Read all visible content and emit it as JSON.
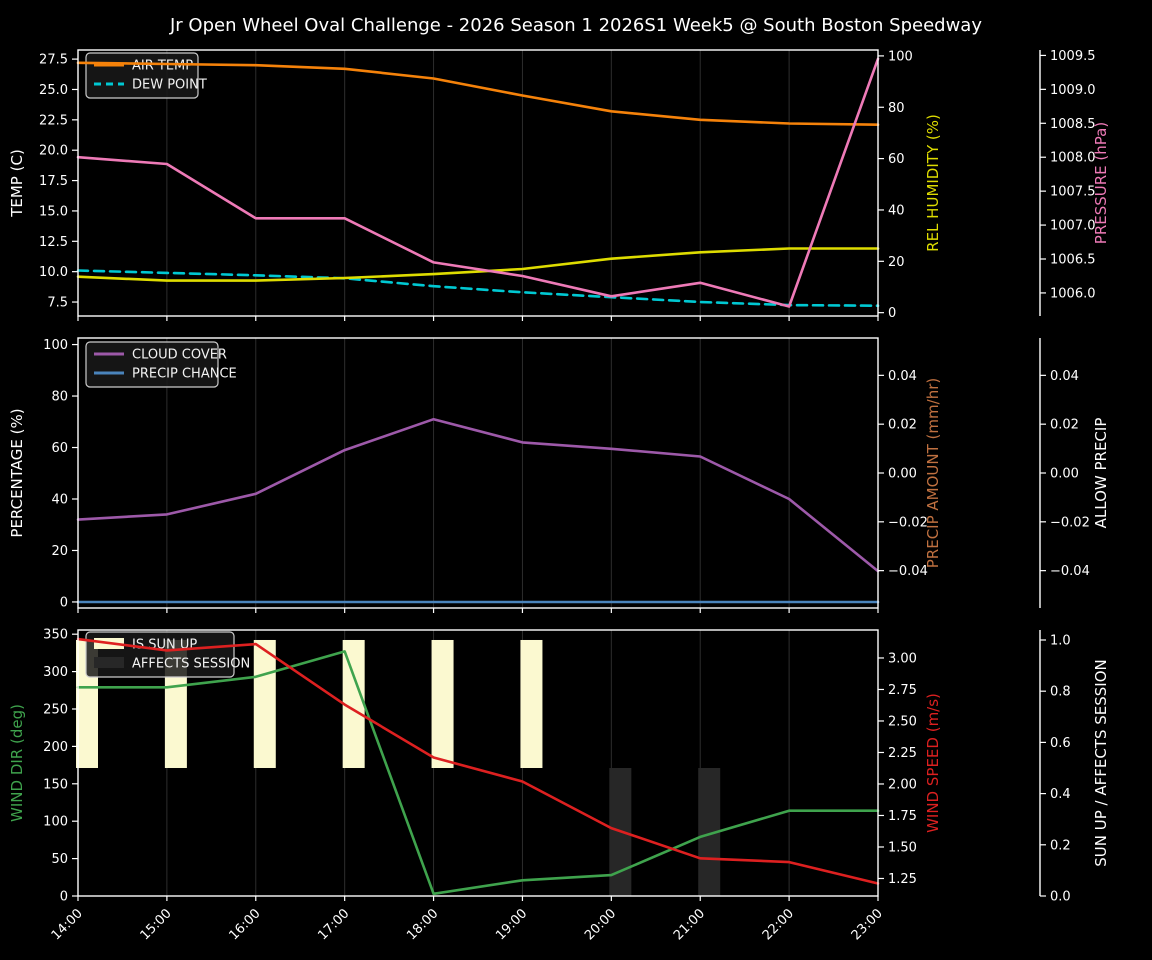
{
  "title": "Jr Open Wheel Oval Challenge - 2026 Season 1 2026S1 Week5 @ South Boston Speedway",
  "colors": {
    "background": "#000000",
    "foreground": "#ffffff",
    "grid": "#2d2d2d",
    "legend_border": "#cccccc",
    "legend_text": "#f2f2f2",
    "air_temp": "#f5820a",
    "dew_point": "#00c8d2",
    "rel_humidity": "#dedc00",
    "pressure": "#ee7ab7",
    "cloud_cover": "#9d59a9",
    "precip_chance": "#4a84bc",
    "precip_amount_label": "#bf7040",
    "allow_precip_label": "#ffffff",
    "wind_dir": "#3fa34d",
    "wind_speed": "#dd2020",
    "sun_up_bar": "#fbf9d0",
    "affects_session_bar": "#272727"
  },
  "x": {
    "hours": [
      14,
      15,
      16,
      17,
      18,
      19,
      20,
      21,
      22,
      23
    ],
    "labels": [
      "14:00",
      "15:00",
      "16:00",
      "17:00",
      "18:00",
      "19:00",
      "20:00",
      "21:00",
      "22:00",
      "23:00"
    ]
  },
  "chart_data": [
    {
      "name": "temperature-humidity-pressure",
      "type": "line",
      "series": [
        {
          "name": "AIR TEMP",
          "axis": "temp",
          "color_key": "air_temp",
          "dash": false,
          "values": [
            27.2,
            27.1,
            27.0,
            26.7,
            25.9,
            24.5,
            23.2,
            22.5,
            22.2,
            22.1
          ]
        },
        {
          "name": "DEW POINT",
          "axis": "temp",
          "color_key": "dew_point",
          "dash": true,
          "values": [
            10.1,
            9.9,
            9.7,
            9.45,
            8.8,
            8.3,
            7.9,
            7.5,
            7.25,
            7.2
          ]
        },
        {
          "name": "REL HUMIDITY",
          "axis": "hum",
          "color_key": "rel_humidity",
          "dash": false,
          "values": [
            14,
            12.5,
            12.5,
            13.5,
            15,
            17,
            21,
            23.5,
            25,
            25
          ]
        },
        {
          "name": "PRESSURE",
          "axis": "pres",
          "color_key": "pressure",
          "dash": false,
          "values": [
            1008.0,
            1007.9,
            1007.1,
            1007.1,
            1006.45,
            1006.25,
            1005.95,
            1006.15,
            1005.8,
            1009.45
          ]
        }
      ],
      "axes": {
        "temp": {
          "label": "TEMP (C)",
          "side": "left",
          "label_color_key": "foreground",
          "ticks": [
            "7.5",
            "10.0",
            "12.5",
            "15.0",
            "17.5",
            "20.0",
            "22.5",
            "25.0",
            "27.5"
          ],
          "tick_values": [
            7.5,
            10,
            12.5,
            15,
            17.5,
            20,
            22.5,
            25,
            27.5
          ],
          "range": [
            6.35,
            28.25
          ]
        },
        "hum": {
          "label": "REL HUMIDITY (%)",
          "side": "right1",
          "label_color_key": "rel_humidity",
          "ticks": [
            "0",
            "20",
            "40",
            "60",
            "80",
            "100"
          ],
          "tick_values": [
            0,
            20,
            40,
            60,
            80,
            100
          ],
          "range": [
            -1.3,
            102.3
          ]
        },
        "pres": {
          "label": "PRESSURE (hPa)",
          "side": "right2",
          "label_color_key": "pressure",
          "ticks": [
            "1006.0",
            "1006.5",
            "1007.0",
            "1007.5",
            "1008.0",
            "1008.5",
            "1009.0",
            "1009.5"
          ],
          "tick_values": [
            1006.0,
            1006.5,
            1007.0,
            1007.5,
            1008.0,
            1008.5,
            1009.0,
            1009.5
          ],
          "range": [
            1005.66,
            1009.58
          ]
        }
      },
      "legend": [
        "AIR TEMP",
        "DEW POINT"
      ]
    },
    {
      "name": "cloud-precip",
      "type": "line",
      "series": [
        {
          "name": "CLOUD COVER",
          "axis": "pct",
          "color_key": "cloud_cover",
          "dash": false,
          "values": [
            32,
            34,
            42,
            59,
            71,
            62,
            59.5,
            56.5,
            40,
            12
          ]
        },
        {
          "name": "PRECIP CHANCE",
          "axis": "pct",
          "color_key": "precip_chance",
          "dash": false,
          "values": [
            0,
            0,
            0,
            0,
            0,
            0,
            0,
            0,
            0,
            0
          ]
        }
      ],
      "axes": {
        "pct": {
          "label": "PERCENTAGE (%)",
          "side": "left",
          "label_color_key": "foreground",
          "ticks": [
            "0",
            "20",
            "40",
            "60",
            "80",
            "100"
          ],
          "tick_values": [
            0,
            20,
            40,
            60,
            80,
            100
          ],
          "range": [
            -2.35,
            102.55
          ]
        },
        "amt": {
          "label": "PRECIP AMOUNT (mm/hr)",
          "side": "right1",
          "label_color_key": "precip_amount_label",
          "ticks": [
            "−0.04",
            "−0.02",
            "0.00",
            "0.02",
            "0.04"
          ],
          "tick_values": [
            -0.04,
            -0.02,
            0.0,
            0.02,
            0.04
          ],
          "range": [
            -0.0553,
            0.0553
          ]
        },
        "allow": {
          "label": "ALLOW PRECIP",
          "side": "right2",
          "label_color_key": "allow_precip_label",
          "ticks": [
            "−0.04",
            "−0.02",
            "0.00",
            "0.02",
            "0.04"
          ],
          "tick_values": [
            -0.04,
            -0.02,
            0.0,
            0.02,
            0.04
          ],
          "range": [
            -0.0553,
            0.0553
          ]
        }
      },
      "legend": [
        "CLOUD COVER",
        "PRECIP CHANCE"
      ]
    },
    {
      "name": "wind-sun",
      "type": "line-bar",
      "series": [
        {
          "name": "WIND DIR",
          "axis": "dir",
          "color_key": "wind_dir",
          "dash": false,
          "values": [
            279,
            279,
            293,
            327,
            3,
            21,
            28,
            79,
            114,
            114
          ]
        },
        {
          "name": "WIND SPEED",
          "axis": "spd",
          "color_key": "wind_speed",
          "dash": false,
          "values": [
            3.15,
            3.06,
            3.11,
            2.63,
            2.21,
            2.02,
            1.65,
            1.41,
            1.38,
            1.21
          ]
        }
      ],
      "bars": {
        "is_sun_up": [
          1,
          1,
          1,
          1,
          1,
          1,
          0,
          0,
          0,
          0
        ],
        "affects_session": [
          0,
          0,
          0,
          0,
          0,
          0,
          1,
          1,
          0,
          0
        ]
      },
      "axes": {
        "dir": {
          "label": "WIND DIR (deg)",
          "side": "left",
          "label_color_key": "wind_dir",
          "ticks": [
            "0",
            "50",
            "100",
            "150",
            "200",
            "250",
            "300",
            "350"
          ],
          "tick_values": [
            0,
            50,
            100,
            150,
            200,
            250,
            300,
            350
          ],
          "range": [
            0,
            355.6
          ]
        },
        "spd": {
          "label": "WIND SPEED (m/s)",
          "side": "right1",
          "label_color_key": "wind_speed",
          "ticks": [
            "1.25",
            "1.50",
            "1.75",
            "2.00",
            "2.25",
            "2.50",
            "2.75",
            "3.00"
          ],
          "tick_values": [
            1.25,
            1.5,
            1.75,
            2.0,
            2.25,
            2.5,
            2.75,
            3.0
          ],
          "range": [
            1.111,
            3.222
          ]
        },
        "sun": {
          "label": "SUN UP / AFFECTS SESSION",
          "side": "right2",
          "label_color_key": "foreground",
          "ticks": [
            "0.0",
            "0.2",
            "0.4",
            "0.6",
            "0.8",
            "1.0"
          ],
          "tick_values": [
            0.0,
            0.2,
            0.4,
            0.6,
            0.8,
            1.0
          ],
          "range": [
            0,
            1.039
          ]
        }
      },
      "legend": [
        "IS SUN UP",
        "AFFECTS SESSION"
      ]
    }
  ]
}
